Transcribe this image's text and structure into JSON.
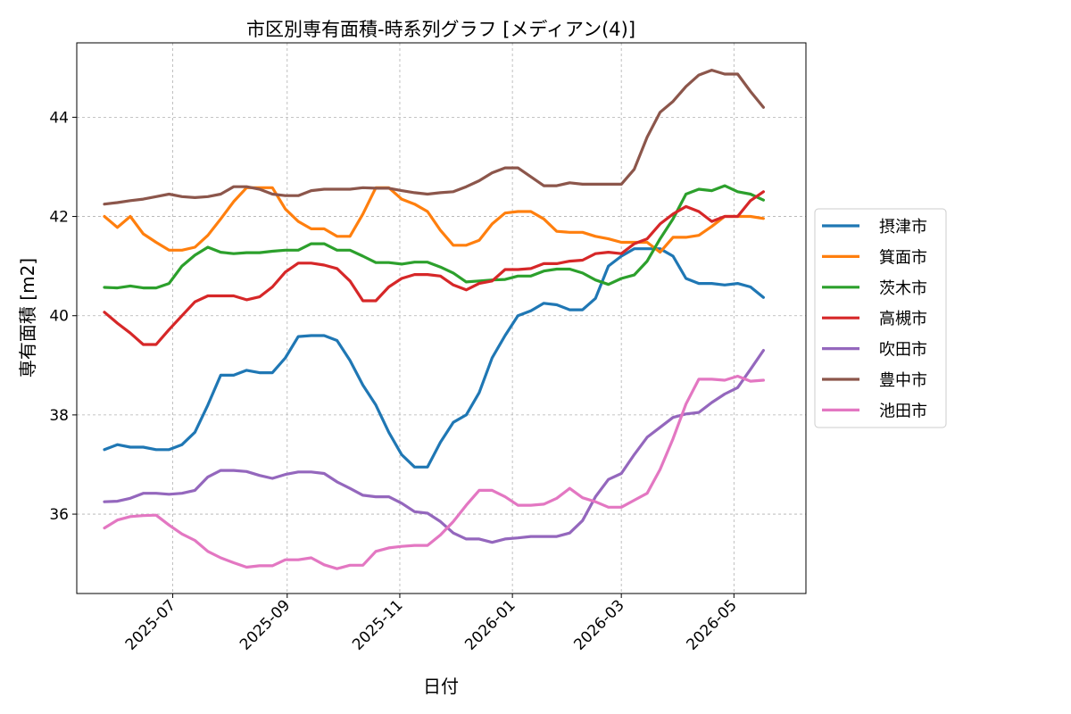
{
  "chart_data": {
    "type": "line",
    "title": "市区別専有面積-時系列グラフ [メディアン(4)]",
    "xlabel": "日付",
    "ylabel": "専有面積 [m2]",
    "xlim": [
      "2025-05-10",
      "2026-06-09"
    ],
    "ylim": [
      34.4,
      45.5
    ],
    "x_ticks": [
      "2025-07-01",
      "2025-09-01",
      "2025-11-01",
      "2026-01-01",
      "2026-03-01",
      "2026-05-01"
    ],
    "x_tick_labels": [
      "2025-07",
      "2025-09",
      "2025-11",
      "2026-01",
      "2026-03",
      "2026-05"
    ],
    "y_ticks": [
      36,
      38,
      40,
      42,
      44
    ],
    "y_tick_labels": [
      "36",
      "38",
      "40",
      "42",
      "44"
    ],
    "grid": true,
    "legend_position": "outside-right",
    "x_start": "2025-05-25",
    "x_step_days": 7,
    "series": [
      {
        "name": "摂津市",
        "color": "#1f77b4",
        "values": [
          37.3,
          37.4,
          37.35,
          37.35,
          37.3,
          37.3,
          37.4,
          37.65,
          38.2,
          38.8,
          38.8,
          38.9,
          38.85,
          38.85,
          39.15,
          39.58,
          39.6,
          39.6,
          39.5,
          39.1,
          38.6,
          38.2,
          37.65,
          37.2,
          36.95,
          36.95,
          37.45,
          37.85,
          38.0,
          38.45,
          39.15,
          39.6,
          40.0,
          40.1,
          40.25,
          40.22,
          40.12,
          40.12,
          40.35,
          41.0,
          41.2,
          41.35,
          41.35,
          41.35,
          41.2,
          40.75,
          40.65,
          40.65,
          40.62,
          40.65,
          40.58,
          40.37
        ]
      },
      {
        "name": "箕面市",
        "color": "#ff7f0e",
        "values": [
          42.0,
          41.78,
          42.0,
          41.65,
          41.48,
          41.32,
          41.32,
          41.38,
          41.62,
          41.95,
          42.3,
          42.58,
          42.58,
          42.58,
          42.15,
          41.9,
          41.75,
          41.75,
          41.6,
          41.6,
          42.05,
          42.58,
          42.58,
          42.35,
          42.25,
          42.1,
          41.72,
          41.42,
          41.42,
          41.52,
          41.85,
          42.07,
          42.1,
          42.1,
          41.95,
          41.7,
          41.68,
          41.68,
          41.6,
          41.55,
          41.48,
          41.48,
          41.48,
          41.28,
          41.58,
          41.58,
          41.62,
          41.8,
          42.0,
          42.0,
          42.0,
          41.96
        ]
      },
      {
        "name": "茨木市",
        "color": "#2ca02c",
        "values": [
          40.57,
          40.56,
          40.6,
          40.56,
          40.56,
          40.65,
          41.0,
          41.22,
          41.38,
          41.28,
          41.25,
          41.27,
          41.27,
          41.3,
          41.32,
          41.32,
          41.45,
          41.45,
          41.32,
          41.32,
          41.2,
          41.07,
          41.07,
          41.04,
          41.08,
          41.08,
          40.98,
          40.86,
          40.68,
          40.7,
          40.72,
          40.73,
          40.8,
          40.8,
          40.9,
          40.94,
          40.94,
          40.86,
          40.72,
          40.63,
          40.75,
          40.82,
          41.1,
          41.55,
          41.95,
          42.45,
          42.55,
          42.52,
          42.62,
          42.5,
          42.45,
          42.33
        ]
      },
      {
        "name": "高槻市",
        "color": "#d62728",
        "values": [
          40.07,
          39.85,
          39.65,
          39.42,
          39.42,
          39.72,
          40.0,
          40.28,
          40.4,
          40.4,
          40.4,
          40.32,
          40.38,
          40.58,
          40.88,
          41.06,
          41.06,
          41.02,
          40.95,
          40.7,
          40.3,
          40.3,
          40.58,
          40.75,
          40.83,
          40.83,
          40.8,
          40.62,
          40.52,
          40.65,
          40.7,
          40.93,
          40.93,
          40.95,
          41.05,
          41.05,
          41.1,
          41.12,
          41.25,
          41.28,
          41.25,
          41.45,
          41.55,
          41.85,
          42.05,
          42.2,
          42.1,
          41.9,
          42.0,
          42.0,
          42.32,
          42.5
        ]
      },
      {
        "name": "吹田市",
        "color": "#9467bd",
        "values": [
          36.25,
          36.26,
          36.32,
          36.42,
          36.42,
          36.4,
          36.42,
          36.48,
          36.75,
          36.88,
          36.88,
          36.86,
          36.78,
          36.72,
          36.8,
          36.85,
          36.85,
          36.82,
          36.65,
          36.52,
          36.38,
          36.35,
          36.35,
          36.22,
          36.05,
          36.02,
          35.85,
          35.62,
          35.5,
          35.5,
          35.43,
          35.5,
          35.52,
          35.55,
          35.55,
          35.55,
          35.62,
          35.87,
          36.35,
          36.7,
          36.82,
          37.2,
          37.55,
          37.75,
          37.95,
          38.02,
          38.05,
          38.25,
          38.42,
          38.55,
          38.92,
          39.3
        ]
      },
      {
        "name": "豊中市",
        "color": "#8c564b",
        "values": [
          42.25,
          42.28,
          42.32,
          42.35,
          42.4,
          42.45,
          42.4,
          42.38,
          42.4,
          42.45,
          42.6,
          42.6,
          42.55,
          42.45,
          42.42,
          42.42,
          42.52,
          42.55,
          42.55,
          42.55,
          42.58,
          42.57,
          42.57,
          42.52,
          42.48,
          42.45,
          42.48,
          42.5,
          42.6,
          42.72,
          42.88,
          42.98,
          42.98,
          42.8,
          42.62,
          42.62,
          42.68,
          42.65,
          42.65,
          42.65,
          42.65,
          42.95,
          43.6,
          44.1,
          44.32,
          44.62,
          44.85,
          44.95,
          44.87,
          44.87,
          44.52,
          44.2
        ]
      },
      {
        "name": "池田市",
        "color": "#e377c2",
        "values": [
          35.72,
          35.88,
          35.95,
          35.97,
          35.98,
          35.78,
          35.6,
          35.47,
          35.25,
          35.12,
          35.02,
          34.93,
          34.96,
          34.96,
          35.08,
          35.08,
          35.12,
          34.98,
          34.9,
          34.97,
          34.97,
          35.25,
          35.32,
          35.35,
          35.37,
          35.37,
          35.58,
          35.85,
          36.18,
          36.48,
          36.48,
          36.35,
          36.18,
          36.18,
          36.2,
          36.32,
          36.52,
          36.33,
          36.25,
          36.14,
          36.14,
          36.28,
          36.42,
          36.9,
          37.52,
          38.22,
          38.72,
          38.72,
          38.7,
          38.78,
          38.68,
          38.7
        ]
      }
    ]
  }
}
